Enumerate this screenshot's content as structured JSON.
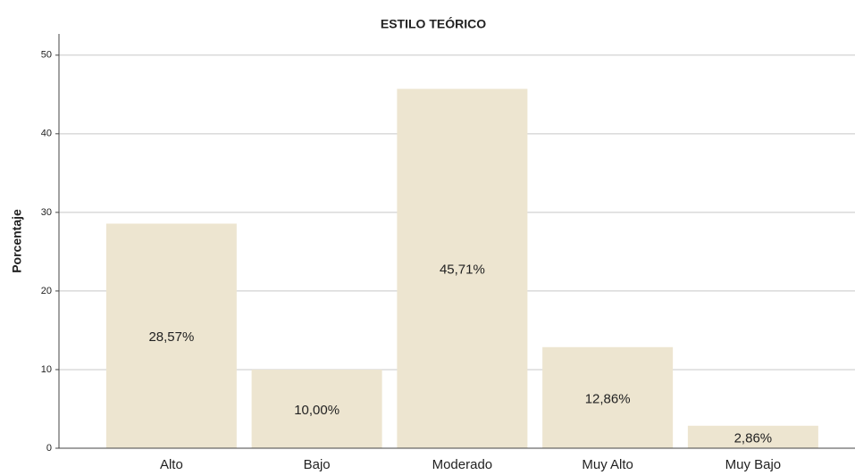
{
  "chart_data": {
    "type": "bar",
    "title": "ESTILO TEÓRICO",
    "y_label": "Porcentaje",
    "categories": [
      "Alto",
      "Bajo",
      "Moderado",
      "Muy Alto",
      "Muy Bajo"
    ],
    "values": [
      28.57,
      10.0,
      45.71,
      12.86,
      2.86
    ],
    "value_labels": [
      "28,57%",
      "10,00%",
      "45,71%",
      "12,86%",
      "2,86%"
    ],
    "color": "#ede5d0",
    "ylim": [
      0,
      52.7
    ],
    "yticks": [
      0,
      10,
      20,
      30,
      40,
      50
    ],
    "grid": true
  }
}
